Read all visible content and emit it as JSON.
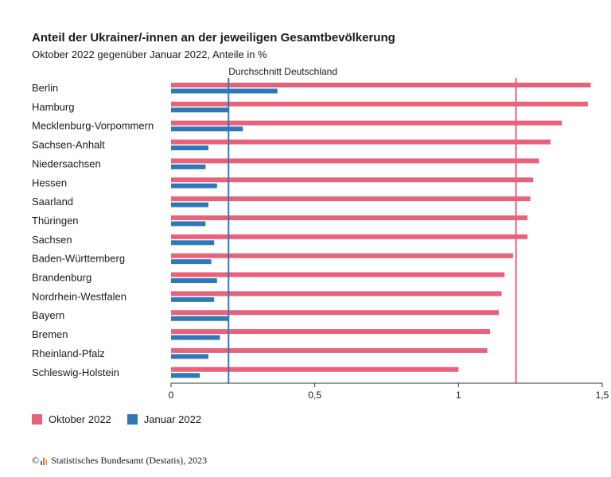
{
  "header": {
    "title": "Anteil der Ukrainer/-innen an der jeweiligen Gesamtbevölkerung",
    "subtitle": "Oktober 2022 gegenüber Januar 2022, Anteile in %"
  },
  "legend": {
    "items": [
      {
        "label": "Oktober 2022",
        "color": "#e8627a"
      },
      {
        "label": "Januar 2022",
        "color": "#2f78b8"
      }
    ]
  },
  "source": {
    "copyright_symbol": "©",
    "text": "Statistisches Bundesamt (Destatis), 2023"
  },
  "chart_data": {
    "type": "bar",
    "orientation": "horizontal",
    "title": "Anteil der Ukrainer/-innen an der jeweiligen Gesamtbevölkerung",
    "subtitle": "Oktober 2022 gegenüber Januar 2022, Anteile in %",
    "categories": [
      "Berlin",
      "Hamburg",
      "Mecklenburg-Vorpommern",
      "Sachsen-Anhalt",
      "Niedersachsen",
      "Hessen",
      "Saarland",
      "Thüringen",
      "Sachsen",
      "Baden-Württemberg",
      "Brandenburg",
      "Nordrhein-Westfalen",
      "Bayern",
      "Bremen",
      "Rheinland-Pfalz",
      "Schleswig-Holstein"
    ],
    "series": [
      {
        "name": "Oktober 2022",
        "color": "#e8627a",
        "values": [
          1.46,
          1.45,
          1.36,
          1.32,
          1.28,
          1.26,
          1.25,
          1.24,
          1.24,
          1.19,
          1.16,
          1.15,
          1.14,
          1.11,
          1.1,
          1.0
        ]
      },
      {
        "name": "Januar 2022",
        "color": "#2f78b8",
        "values": [
          0.37,
          0.2,
          0.25,
          0.13,
          0.12,
          0.16,
          0.13,
          0.12,
          0.15,
          0.14,
          0.16,
          0.15,
          0.2,
          0.17,
          0.13,
          0.1
        ]
      }
    ],
    "reference_lines": [
      {
        "label": "Durchschnitt Deutschland",
        "value": 0.2,
        "color": "#2f78b8"
      },
      {
        "label": "",
        "value": 1.2,
        "color": "#e8627a"
      }
    ],
    "xticks": [
      {
        "value": 0,
        "label": "0"
      },
      {
        "value": 0.5,
        "label": "0,5"
      },
      {
        "value": 1,
        "label": "1"
      },
      {
        "value": 1.5,
        "label": "1,5"
      }
    ],
    "xlim": [
      0,
      1.5
    ],
    "xlabel": "",
    "ylabel": "",
    "grid": false,
    "legend_position": "bottom-left"
  }
}
